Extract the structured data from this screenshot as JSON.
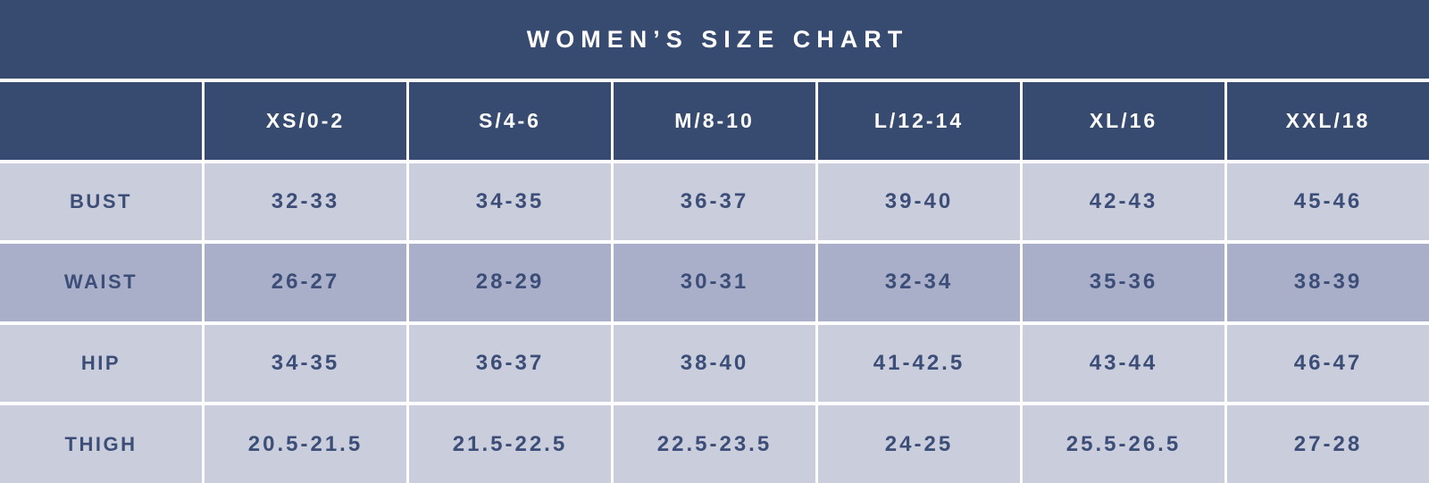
{
  "colors": {
    "header_bg": "#374A70",
    "header_text": "#FFFFFF",
    "row_light": "#C9CDDC",
    "row_dark": "#A9AFC9",
    "body_text": "#3C4E78",
    "divider": "#FFFFFF"
  },
  "chart_data": {
    "type": "table",
    "title": "WOMEN’S SIZE CHART",
    "column_headers": [
      "XS/0-2",
      "S/4-6",
      "M/8-10",
      "L/12-14",
      "XL/16",
      "XXL/18"
    ],
    "rows": [
      {
        "label": "BUST",
        "shade": "light",
        "values": [
          "32-33",
          "34-35",
          "36-37",
          "39-40",
          "42-43",
          "45-46"
        ]
      },
      {
        "label": "WAIST",
        "shade": "dark",
        "values": [
          "26-27",
          "28-29",
          "30-31",
          "32-34",
          "35-36",
          "38-39"
        ]
      },
      {
        "label": "HIP",
        "shade": "light",
        "values": [
          "34-35",
          "36-37",
          "38-40",
          "41-42.5",
          "43-44",
          "46-47"
        ]
      },
      {
        "label": "THIGH",
        "shade": "light",
        "values": [
          "20.5-21.5",
          "21.5-22.5",
          "22.5-23.5",
          "24-25",
          "25.5-26.5",
          "27-28"
        ]
      }
    ]
  }
}
